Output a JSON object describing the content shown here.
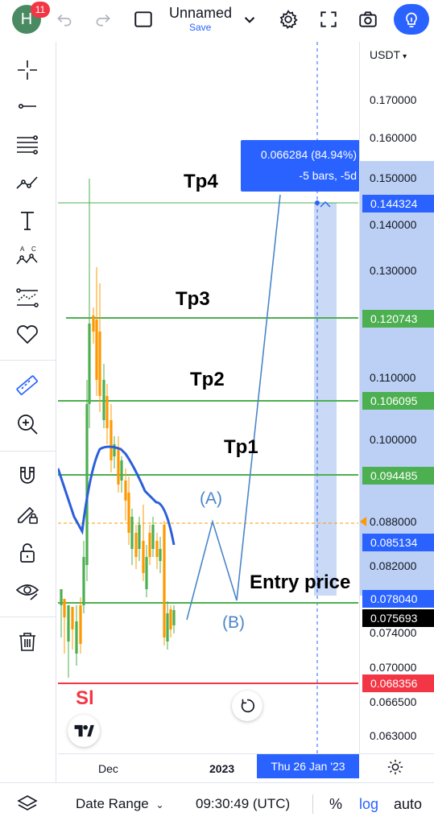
{
  "header": {
    "avatar_letter": "H",
    "notification_count": "11",
    "doc_name": "Unnamed",
    "doc_save": "Save",
    "icons": [
      "undo-icon",
      "redo-icon",
      "symbol-box-icon",
      "chevron-down-icon",
      "gear-icon",
      "fullscreen-icon",
      "camera-icon",
      "lightbulb-icon"
    ]
  },
  "sidebar": {
    "tools": [
      "crosshair-icon",
      "trendline-icon",
      "fib-icon",
      "path-icon",
      "text-icon",
      "pattern-icon",
      "forecast-icon",
      "heart-icon",
      "ruler-icon",
      "zoom-icon",
      "magnet-icon",
      "lock-pencil-icon",
      "lock-icon",
      "eye-icon",
      "trash-icon"
    ]
  },
  "price_axis": {
    "currency": "USDT",
    "ticks": [
      "0.170000",
      "0.160000",
      "0.150000",
      "0.140000",
      "0.130000",
      "0.110000",
      "0.100000",
      "0.088000",
      "0.082000",
      "0.074000",
      "0.070000",
      "0.066500",
      "0.063000"
    ],
    "tags": {
      "target": "0.144324",
      "tp3": "0.120743",
      "tp2": "0.106095",
      "tp1": "0.094485",
      "ma": "0.085134",
      "entry": "0.078040",
      "last": "0.075693",
      "sl": "0.068356"
    }
  },
  "chart": {
    "labels": {
      "tp4": "Tp4",
      "tp3": "Tp3",
      "tp2": "Tp2",
      "tp1": "Tp1",
      "entry": "Entry price",
      "sl": "Sl",
      "a": "(A)",
      "b": "(B)"
    },
    "measure": {
      "line1": "0.066284 (84.94%)",
      "line2": "-5 bars, -5d"
    },
    "colors": {
      "green": "#4caf50",
      "red": "#f23645",
      "blue": "#2962ff",
      "projection": "#4a86c8",
      "orange": "#ff9800"
    }
  },
  "time_axis": {
    "dec": "Dec",
    "year": "2023",
    "cursor_date": "Thu 26 Jan '23"
  },
  "bottom": {
    "date_range": "Date Range",
    "time": "09:30:49 (UTC)",
    "percent": "%",
    "log": "log",
    "auto": "auto"
  }
}
